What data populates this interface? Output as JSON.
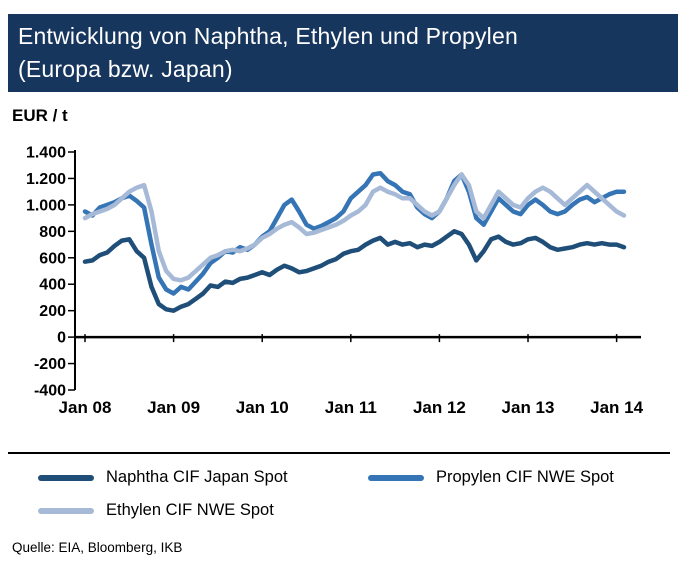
{
  "header": {
    "title_line1": "Entwicklung von Naphtha, Ethylen und Propylen",
    "title_line2": "(Europa bzw. Japan)"
  },
  "source": "Quelle:  EIA, Bloomberg,  IKB",
  "colors": {
    "header_bg": "#17365D",
    "axis": "#000000",
    "naphtha": "#1F4E79",
    "propylen": "#3575B5",
    "ethylen": "#A6BAD8"
  },
  "chart_data": {
    "type": "line",
    "title": "Entwicklung von Naphtha, Ethylen und Propylen (Europa bzw. Japan)",
    "ylabel": "EUR / t",
    "xlabel": "",
    "ylim": [
      -400,
      1400
    ],
    "grid": false,
    "legend_position": "bottom",
    "x_unit": "month",
    "x_range": "Jan 2008 - Feb 2014",
    "y_ticks": [
      {
        "value": 1400,
        "label": "1.400"
      },
      {
        "value": 1200,
        "label": "1.200"
      },
      {
        "value": 1000,
        "label": "1.000"
      },
      {
        "value": 800,
        "label": "800"
      },
      {
        "value": 600,
        "label": "600"
      },
      {
        "value": 400,
        "label": "400"
      },
      {
        "value": 200,
        "label": "200"
      },
      {
        "value": 0,
        "label": "0"
      },
      {
        "value": -200,
        "label": "-200"
      },
      {
        "value": -400,
        "label": "-400"
      }
    ],
    "x_ticks": [
      {
        "month_index": 0,
        "label": "Jan 08"
      },
      {
        "month_index": 12,
        "label": "Jan 09"
      },
      {
        "month_index": 24,
        "label": "Jan 10"
      },
      {
        "month_index": 36,
        "label": "Jan 11"
      },
      {
        "month_index": 48,
        "label": "Jan 12"
      },
      {
        "month_index": 60,
        "label": "Jan 13"
      },
      {
        "month_index": 72,
        "label": "Jan 14"
      }
    ],
    "series": [
      {
        "name": "Naphtha CIF Japan Spot",
        "color": "#1F4E79",
        "values": [
          570,
          580,
          620,
          640,
          690,
          730,
          740,
          650,
          600,
          380,
          250,
          210,
          200,
          230,
          250,
          290,
          330,
          390,
          380,
          420,
          410,
          440,
          450,
          470,
          490,
          470,
          510,
          540,
          520,
          490,
          500,
          520,
          540,
          570,
          590,
          630,
          650,
          660,
          700,
          730,
          750,
          700,
          720,
          700,
          710,
          680,
          700,
          690,
          720,
          760,
          800,
          780,
          700,
          580,
          650,
          740,
          760,
          720,
          700,
          710,
          740,
          750,
          720,
          680,
          660,
          670,
          680,
          700,
          710,
          700,
          710,
          700,
          700,
          680
        ]
      },
      {
        "name": "Propylen CIF NWE Spot",
        "color": "#3575B5",
        "values": [
          950,
          920,
          980,
          1000,
          1020,
          1050,
          1070,
          1030,
          980,
          700,
          450,
          360,
          330,
          380,
          360,
          420,
          480,
          560,
          600,
          650,
          640,
          680,
          660,
          700,
          760,
          800,
          900,
          1000,
          1040,
          950,
          850,
          820,
          840,
          870,
          900,
          950,
          1050,
          1100,
          1150,
          1230,
          1240,
          1180,
          1150,
          1100,
          1080,
          980,
          930,
          900,
          950,
          1050,
          1180,
          1230,
          1100,
          900,
          850,
          950,
          1050,
          1000,
          950,
          930,
          1000,
          1040,
          1000,
          950,
          930,
          950,
          1000,
          1040,
          1060,
          1020,
          1050,
          1080,
          1100,
          1100
        ]
      },
      {
        "name": "Ethylen CIF NWE Spot",
        "color": "#A6BAD8",
        "values": [
          900,
          930,
          950,
          970,
          1000,
          1050,
          1100,
          1130,
          1150,
          950,
          650,
          500,
          440,
          430,
          450,
          500,
          550,
          600,
          620,
          650,
          660,
          650,
          670,
          700,
          750,
          780,
          820,
          850,
          870,
          830,
          780,
          790,
          810,
          830,
          850,
          880,
          920,
          950,
          1000,
          1100,
          1130,
          1100,
          1080,
          1050,
          1050,
          1000,
          950,
          920,
          950,
          1050,
          1150,
          1230,
          1150,
          950,
          900,
          1000,
          1100,
          1050,
          1000,
          980,
          1050,
          1100,
          1130,
          1100,
          1050,
          1000,
          1050,
          1100,
          1150,
          1100,
          1050,
          1000,
          950,
          920
        ]
      }
    ]
  },
  "legend": {
    "items": [
      {
        "label": "Naphtha CIF Japan Spot"
      },
      {
        "label": "Propylen CIF NWE Spot"
      },
      {
        "label": "Ethylen CIF NWE Spot"
      }
    ]
  }
}
